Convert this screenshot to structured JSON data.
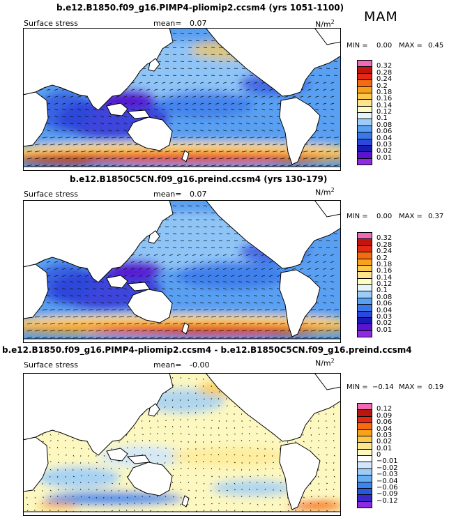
{
  "header": {
    "season": "MAM"
  },
  "panels": [
    {
      "title": "b.e12.B1850.f09_g16.PIMP4-pliomip2.ccsm4 (yrs 1051-1100)",
      "left_label": "Surface stress",
      "mean_label": "mean=",
      "mean_value": "0.07",
      "units": "N/m",
      "units_exp": "2",
      "min_label": "MIN =",
      "min_value": "0.00",
      "max_label": "MAX =",
      "max_value": "0.45",
      "colorbar": [
        "0.32",
        "0.28",
        "0.24",
        "0.2",
        "0.18",
        "0.16",
        "0.14",
        "0.12",
        "0.1",
        "0.08",
        "0.06",
        "0.04",
        "0.03",
        "0.02",
        "0.01"
      ]
    },
    {
      "title": "b.e12.B1850C5CN.f09_g16.preind.ccsm4 (yrs 130-179)",
      "left_label": "Surface stress",
      "mean_label": "mean=",
      "mean_value": "0.07",
      "units": "N/m",
      "units_exp": "2",
      "min_label": "MIN =",
      "min_value": "0.00",
      "max_label": "MAX =",
      "max_value": "0.37",
      "colorbar": [
        "0.32",
        "0.28",
        "0.24",
        "0.2",
        "0.18",
        "0.16",
        "0.14",
        "0.12",
        "0.1",
        "0.08",
        "0.06",
        "0.04",
        "0.03",
        "0.02",
        "0.01"
      ]
    },
    {
      "title": "b.e12.B1850.f09_g16.PIMP4-pliomip2.ccsm4 - b.e12.B1850C5CN.f09_g16.preind.ccsm4",
      "left_label": "Surface stress",
      "mean_label": "mean=",
      "mean_value": "-0.00",
      "units": "N/m",
      "units_exp": "2",
      "min_label": "MIN =",
      "min_value": "−0.14",
      "max_label": "MAX =",
      "max_value": "0.19",
      "colorbar": [
        "0.12",
        "0.09",
        "0.06",
        "0.04",
        "0.03",
        "0.02",
        "0.01",
        "0",
        "−0.01",
        "−0.02",
        "−0.03",
        "−0.04",
        "−0.06",
        "−0.09",
        "−0.12"
      ]
    }
  ],
  "chart_data": [
    {
      "type": "heatmap",
      "title": "b.e12.B1850.f09_g16.PIMP4-pliomip2.ccsm4 (yrs 1051-1100)",
      "variable": "Surface stress",
      "season": "MAM",
      "units": "N/m2",
      "mean": 0.07,
      "min": 0.0,
      "max": 0.45,
      "levels": [
        0.01,
        0.02,
        0.03,
        0.04,
        0.06,
        0.08,
        0.1,
        0.12,
        0.14,
        0.16,
        0.18,
        0.2,
        0.24,
        0.28,
        0.32
      ],
      "colors": [
        "#8e2be2",
        "#5a14cf",
        "#1a1ab4",
        "#2a48dc",
        "#3a78ea",
        "#5aa0f2",
        "#9ccdf8",
        "#e3f4fc",
        "#fdfcc4",
        "#fde38c",
        "#fbc84a",
        "#f7a21c",
        "#f36c12",
        "#e32a14",
        "#c4140e",
        "#ef6ab4"
      ],
      "overlay": "wind stress vectors"
    },
    {
      "type": "heatmap",
      "title": "b.e12.B1850C5CN.f09_g16.preind.ccsm4 (yrs 130-179)",
      "variable": "Surface stress",
      "season": "MAM",
      "units": "N/m2",
      "mean": 0.07,
      "min": 0.0,
      "max": 0.37,
      "levels": [
        0.01,
        0.02,
        0.03,
        0.04,
        0.06,
        0.08,
        0.1,
        0.12,
        0.14,
        0.16,
        0.18,
        0.2,
        0.24,
        0.28,
        0.32
      ],
      "colors": [
        "#8e2be2",
        "#5a14cf",
        "#1a1ab4",
        "#2a48dc",
        "#3a78ea",
        "#5aa0f2",
        "#9ccdf8",
        "#e3f4fc",
        "#fdfcc4",
        "#fde38c",
        "#fbc84a",
        "#f7a21c",
        "#f36c12",
        "#e32a14",
        "#c4140e",
        "#ef6ab4"
      ],
      "overlay": "wind stress vectors"
    },
    {
      "type": "heatmap",
      "title": "b.e12.B1850.f09_g16.PIMP4-pliomip2.ccsm4 - b.e12.B1850C5CN.f09_g16.preind.ccsm4",
      "variable": "Surface stress",
      "season": "MAM",
      "units": "N/m2",
      "mean": -0.0,
      "min": -0.14,
      "max": 0.19,
      "levels": [
        -0.12,
        -0.09,
        -0.06,
        -0.04,
        -0.03,
        -0.02,
        -0.01,
        0,
        0.01,
        0.02,
        0.03,
        0.04,
        0.06,
        0.09,
        0.12
      ],
      "colors": [
        "#8e2be2",
        "#3a28c8",
        "#2a58dc",
        "#3a86ee",
        "#68aef4",
        "#9ccdf8",
        "#cfe6fb",
        "#ffffff",
        "#fdf8c0",
        "#fde88e",
        "#fbc84a",
        "#f7a21c",
        "#f36c12",
        "#e32a14",
        "#b8160e",
        "#ef6ab4"
      ],
      "overlay": "wind stress difference vectors"
    }
  ]
}
